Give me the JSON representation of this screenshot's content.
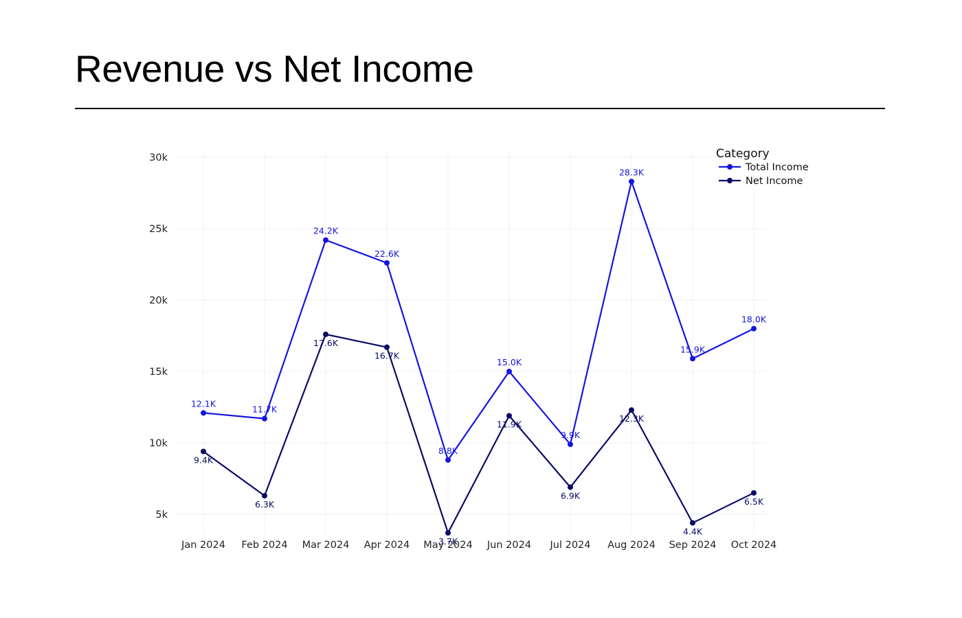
{
  "page": {
    "title": "Revenue vs Net Income"
  },
  "chart_data": {
    "type": "line",
    "title": "",
    "xlabel": "",
    "ylabel": "",
    "categories": [
      "Jan 2024",
      "Feb 2024",
      "Mar 2024",
      "Apr 2024",
      "May 2024",
      "Jun 2024",
      "Jul 2024",
      "Aug 2024",
      "Sep 2024",
      "Oct 2024"
    ],
    "y_ticks": [
      5000,
      10000,
      15000,
      20000,
      25000,
      30000
    ],
    "y_tick_labels": [
      "5k",
      "10k",
      "15k",
      "20k",
      "25k",
      "30k"
    ],
    "ylim": [
      3600,
      30500
    ],
    "grid": true,
    "legend": {
      "title": "Category",
      "placement": "top-right"
    },
    "series": [
      {
        "name": "Total Income",
        "color": "#1414e0",
        "values": [
          12100,
          11700,
          24200,
          22600,
          8800,
          15000,
          9900,
          28300,
          15900,
          18000
        ],
        "labels": [
          "12.1K",
          "11.7K",
          "24.2K",
          "22.6K",
          "8.8K",
          "15.0K",
          "9.9K",
          "28.3K",
          "15.9K",
          "18.0K"
        ]
      },
      {
        "name": "Net Income",
        "color": "#0a0a66",
        "values": [
          9400,
          6300,
          17600,
          16700,
          3700,
          11900,
          6900,
          12300,
          4400,
          6500
        ],
        "labels": [
          "9.4K",
          "6.3K",
          "17.6K",
          "16.7K",
          "3.7K",
          "11.9K",
          "6.9K",
          "12.3K",
          "4.4K",
          "6.5K"
        ]
      }
    ]
  }
}
